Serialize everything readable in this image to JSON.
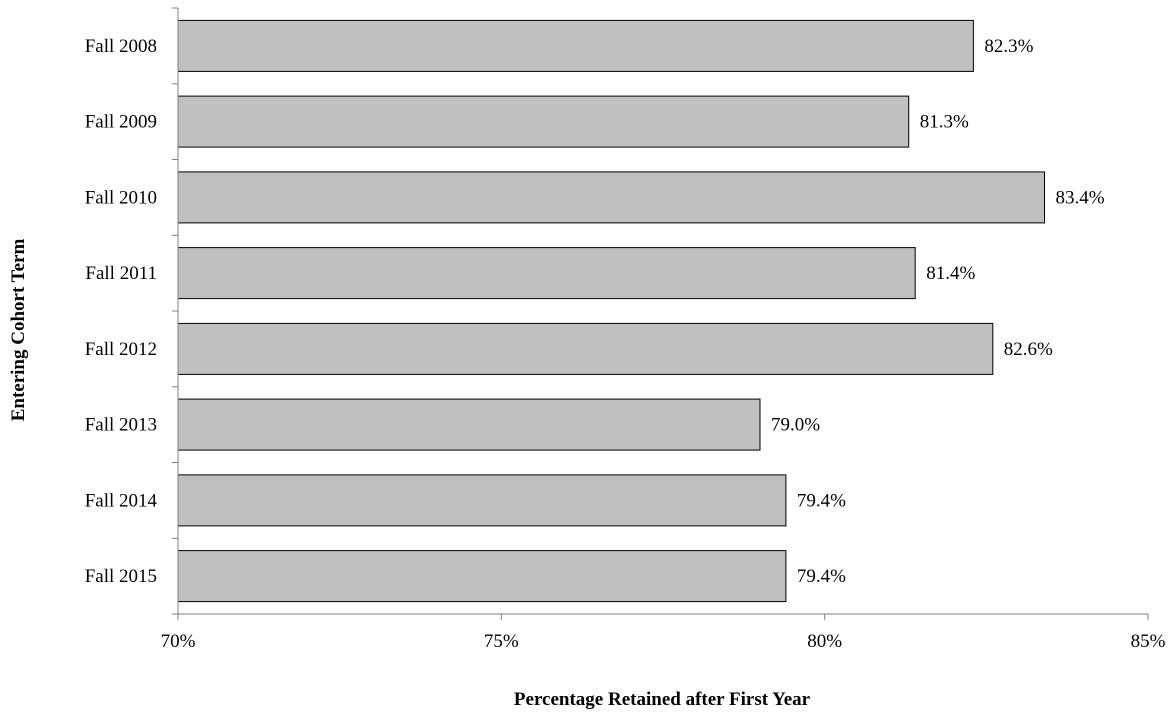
{
  "chart_data": {
    "type": "bar",
    "orientation": "horizontal",
    "categories": [
      "Fall 2008",
      "Fall 2009",
      "Fall 2010",
      "Fall 2011",
      "Fall 2012",
      "Fall 2013",
      "Fall 2014",
      "Fall 2015"
    ],
    "values": [
      82.3,
      81.3,
      83.4,
      81.4,
      82.6,
      79.0,
      79.4,
      79.4
    ],
    "data_labels": [
      "82.3%",
      "81.3%",
      "83.4%",
      "81.4%",
      "82.6%",
      "79.0%",
      "79.4%",
      "79.4%"
    ],
    "xlim": [
      70,
      85
    ],
    "x_ticks": [
      70,
      75,
      80,
      85
    ],
    "x_tick_labels": [
      "70%",
      "75%",
      "80%",
      "85%"
    ],
    "xlabel": "Percentage Retained after First Year",
    "ylabel": "Entering Cohort Term",
    "title": "",
    "grid": false,
    "legend": "none",
    "bar_color": "#c0c0c0",
    "bar_border_color": "#000000",
    "axis_color": "#808080"
  }
}
